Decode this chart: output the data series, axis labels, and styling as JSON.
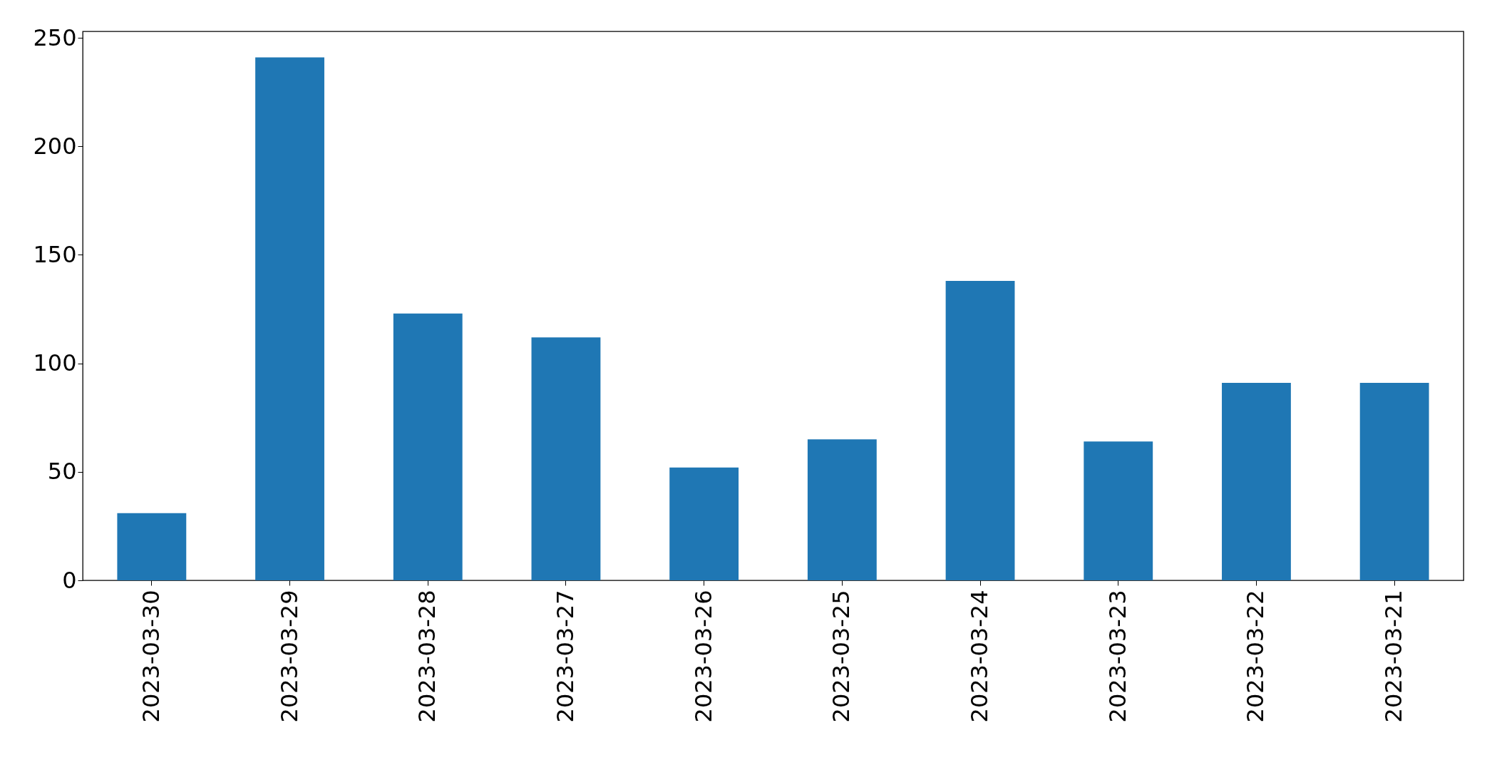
{
  "chart_data": {
    "type": "bar",
    "categories": [
      "2023-03-30",
      "2023-03-29",
      "2023-03-28",
      "2023-03-27",
      "2023-03-26",
      "2023-03-25",
      "2023-03-24",
      "2023-03-23",
      "2023-03-22",
      "2023-03-21"
    ],
    "values": [
      31,
      241,
      123,
      112,
      52,
      65,
      138,
      64,
      91,
      91
    ],
    "color": "#1f77b4",
    "ylim": [
      0,
      253
    ],
    "yticks": [
      0,
      50,
      100,
      150,
      200,
      250
    ],
    "grid": false
  }
}
